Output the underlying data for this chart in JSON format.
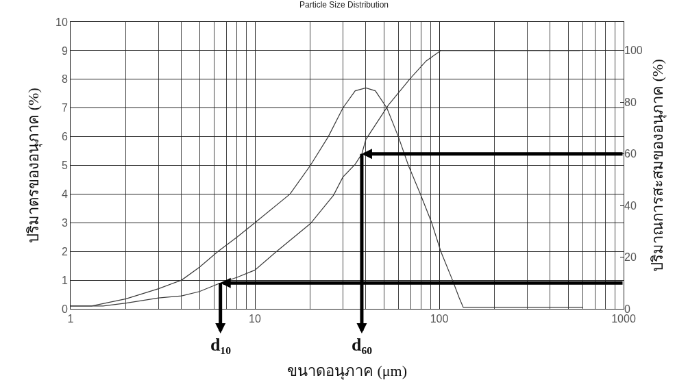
{
  "chart_data": {
    "type": "line",
    "title": "Particle Size Distribution",
    "xlabel": "ขนาดอนุภาค (μm)",
    "ylabel": "ปริมาตรของอนุภาค (%)",
    "y2label": "ปริมาณการสะสมของอนุภาค (%)",
    "log": "x",
    "grid": true,
    "marker": "none",
    "line_style": "solid",
    "xlim": [
      1,
      1000
    ],
    "xticks": [
      1,
      10,
      100,
      1000
    ],
    "ylim": [
      0,
      10
    ],
    "yticks": [
      0,
      1,
      2,
      3,
      4,
      5,
      6,
      7,
      8,
      9,
      10
    ],
    "y2lim": [
      0,
      111.1
    ],
    "y2ticks": [
      0,
      20,
      40,
      60,
      80,
      100
    ],
    "series": [
      {
        "color": "#3a3a3a",
        "x": [
          1,
          1.3,
          2,
          3,
          4,
          5,
          6.3,
          8,
          10,
          15.5,
          20,
          25,
          30,
          35,
          40,
          45,
          52,
          60,
          68,
          79,
          91,
          102,
          118,
          128,
          135,
          600
        ],
        "values": [
          0.1,
          0.1,
          0.35,
          0.7,
          1.0,
          1.45,
          2,
          2.5,
          3,
          4,
          5,
          6,
          7,
          7.6,
          7.7,
          7.6,
          7,
          6,
          5,
          4,
          3,
          2,
          1,
          0.4,
          0.05,
          0.05
        ]
      },
      {
        "color": "#3a3a3a",
        "axis": "y2",
        "x": [
          1,
          1.5,
          2,
          3,
          4,
          5,
          6.5,
          8,
          10,
          13,
          20,
          26.7,
          30,
          35,
          38,
          40,
          53,
          70,
          85,
          102,
          115,
          580
        ],
        "values": [
          1.1,
          1.1,
          2.2,
          4.2,
          5,
          6.7,
          10,
          12.2,
          15,
          22,
          33,
          44,
          51,
          56,
          60,
          65.6,
          78.9,
          89.4,
          96,
          100,
          100,
          100
        ]
      }
    ],
    "ref_lines": [
      {
        "axis": "y2",
        "value": 10,
        "color": "#000000"
      },
      {
        "axis": "y2",
        "value": 60,
        "color": "#000000"
      }
    ],
    "annotations": [
      {
        "text": "d₁₀",
        "x": 6.5,
        "y": 0.9
      },
      {
        "text": "d₆₀",
        "x": 38,
        "y": 5.4
      }
    ]
  }
}
